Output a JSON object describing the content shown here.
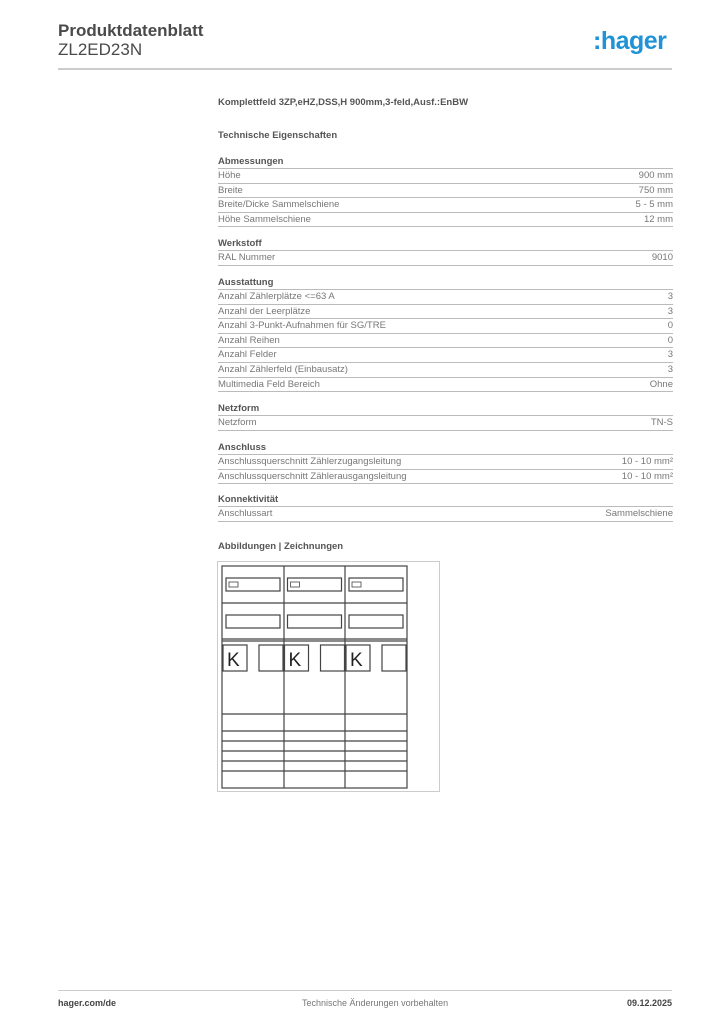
{
  "header": {
    "title": "Produktdatenblatt",
    "article": "ZL2ED23N",
    "logo": ":hager",
    "brand_color": "#1f93d6"
  },
  "description": "Komplettfeld 3ZP,eHZ,DSS,H 900mm,3-feld,Ausf.:EnBW",
  "tech_heading": "Technische Eigenschaften",
  "sections": [
    {
      "title": "Abmessungen",
      "rows": [
        [
          "Höhe",
          "900 mm"
        ],
        [
          "Breite",
          "750 mm"
        ],
        [
          "Breite/Dicke Sammelschiene",
          "5 - 5 mm"
        ],
        [
          "Höhe Sammelschiene",
          "12 mm"
        ]
      ]
    },
    {
      "title": "Werkstoff",
      "rows": [
        [
          "RAL Nummer",
          "9010"
        ]
      ]
    },
    {
      "title": "Ausstattung",
      "rows": [
        [
          "Anzahl Zählerplätze <=63 A",
          "3"
        ],
        [
          "Anzahl der Leerplätze",
          "3"
        ],
        [
          "Anzahl 3-Punkt-Aufnahmen für SG/TRE",
          "0"
        ],
        [
          "Anzahl Reihen",
          "0"
        ],
        [
          "Anzahl Felder",
          "3"
        ],
        [
          "Anzahl Zählerfeld (Einbausatz)",
          "3"
        ],
        [
          "Multimedia Feld Bereich",
          "Ohne"
        ]
      ]
    },
    {
      "title": "Netzform",
      "rows": [
        [
          "Netzform",
          "TN-S"
        ]
      ]
    },
    {
      "title": "Anschluss",
      "rows": [
        [
          "Anschlussquerschnitt Zählerzugangsleitung",
          "10 - 10 mm²"
        ],
        [
          "Anschlussquerschnitt Zählerausgangsleitung",
          "10 - 10 mm²"
        ]
      ]
    },
    {
      "title": "Konnektivität",
      "rows": [
        [
          "Anschlussart",
          "Sammelschiene"
        ]
      ]
    }
  ],
  "drawings_heading": "Abbildungen | Zeichnungen",
  "drawing": {
    "fields": 3,
    "meter_label": "K"
  },
  "footer": {
    "website": "hager.com/de",
    "notice": "Technische Änderungen vorbehalten",
    "date": "09.12.2025"
  }
}
